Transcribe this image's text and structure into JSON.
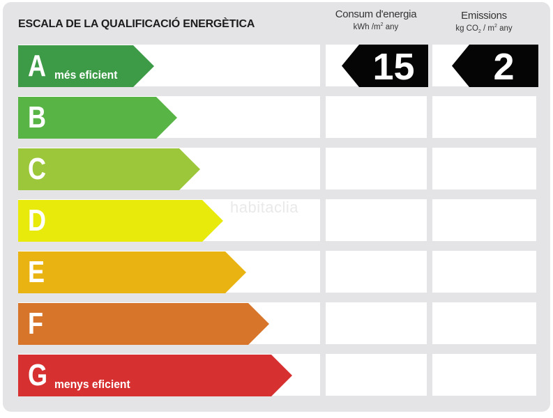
{
  "title": "ESCALA DE LA QUALIFICACIÓ ENERGÈTICA",
  "columns": {
    "consum": {
      "label": "Consum d'energia",
      "unit_prefix": "kWh /m",
      "unit_sup": "2",
      "unit_suffix": " any"
    },
    "emissions": {
      "label": "Emissions",
      "unit_prefix": "kg CO",
      "unit_sub": "2",
      "unit_mid": " / m",
      "unit_sup": "2",
      "unit_suffix": " any"
    }
  },
  "ratings": [
    {
      "letter": "A",
      "sublabel": "més eficient",
      "color": "#3d9a47"
    },
    {
      "letter": "B",
      "sublabel": "",
      "color": "#57b445"
    },
    {
      "letter": "C",
      "sublabel": "",
      "color": "#9dc73a"
    },
    {
      "letter": "D",
      "sublabel": "",
      "color": "#e8ea0c"
    },
    {
      "letter": "E",
      "sublabel": "",
      "color": "#e9b412"
    },
    {
      "letter": "F",
      "sublabel": "",
      "color": "#d7762a"
    },
    {
      "letter": "G",
      "sublabel": "menys eficient",
      "color": "#d63030"
    }
  ],
  "result": {
    "rating": "A",
    "consum_value": "15",
    "emissions_value": "2",
    "tag_color": "#050505"
  },
  "watermark": "habitaclia"
}
